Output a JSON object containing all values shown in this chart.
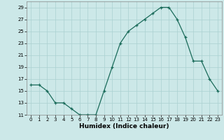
{
  "x": [
    0,
    1,
    2,
    3,
    4,
    5,
    6,
    7,
    8,
    9,
    10,
    11,
    12,
    13,
    14,
    15,
    16,
    17,
    18,
    19,
    20,
    21,
    22,
    23
  ],
  "y": [
    16,
    16,
    15,
    13,
    13,
    12,
    11,
    11,
    11,
    15,
    19,
    23,
    25,
    26,
    27,
    28,
    29,
    29,
    27,
    24,
    20,
    20,
    17,
    15
  ],
  "line_color": "#1a6b5a",
  "marker": "+",
  "background_color": "#cce8e8",
  "grid_color": "#aad0d0",
  "xlabel": "Humidex (Indice chaleur)",
  "ylim": [
    11,
    30
  ],
  "yticks": [
    11,
    13,
    15,
    17,
    19,
    21,
    23,
    25,
    27,
    29
  ],
  "xlim": [
    -0.5,
    23.5
  ],
  "xticks": [
    0,
    1,
    2,
    3,
    4,
    5,
    6,
    7,
    8,
    9,
    10,
    11,
    12,
    13,
    14,
    15,
    16,
    17,
    18,
    19,
    20,
    21,
    22,
    23
  ],
  "tick_fontsize": 5.0,
  "xlabel_fontsize": 6.5
}
